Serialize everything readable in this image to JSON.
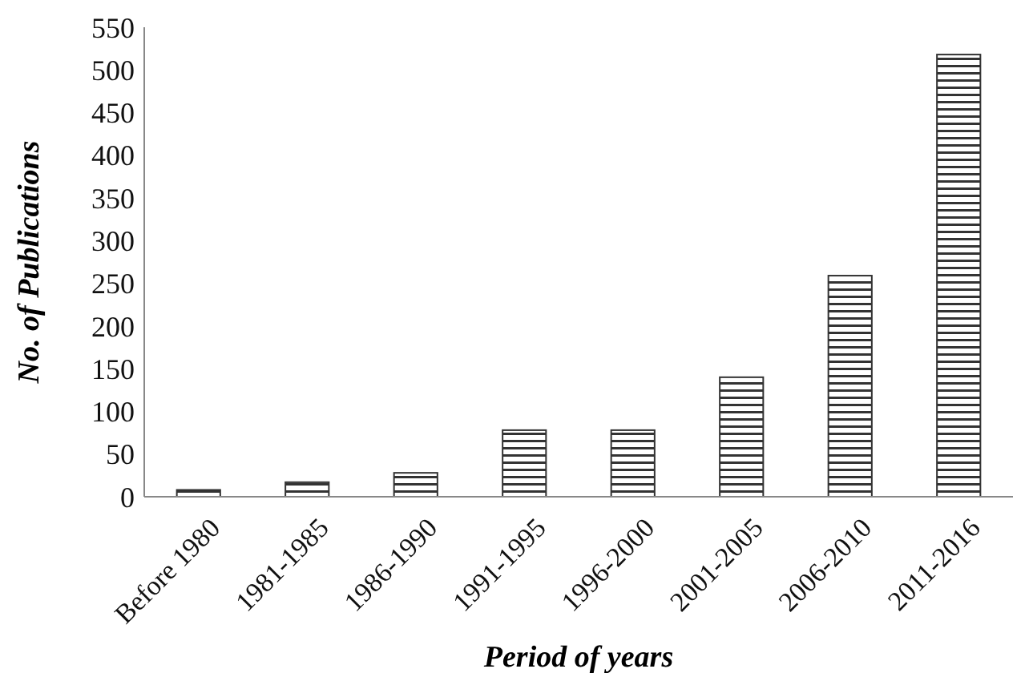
{
  "chart_data": {
    "type": "bar",
    "xlabel": "Period of years",
    "ylabel": "No. of Publications",
    "categories": [
      "Before 1980",
      "1981-1985",
      "1986-1990",
      "1991-1995",
      "1996-2000",
      "2001-2005",
      "2006-2010",
      "2011-2016"
    ],
    "values": [
      8,
      17,
      28,
      78,
      78,
      140,
      259,
      518
    ],
    "color": "#333333",
    "ylim": [
      0,
      550
    ],
    "yticks": [
      0,
      50,
      100,
      150,
      200,
      250,
      300,
      350,
      400,
      450,
      500,
      550
    ],
    "grid": false
  }
}
